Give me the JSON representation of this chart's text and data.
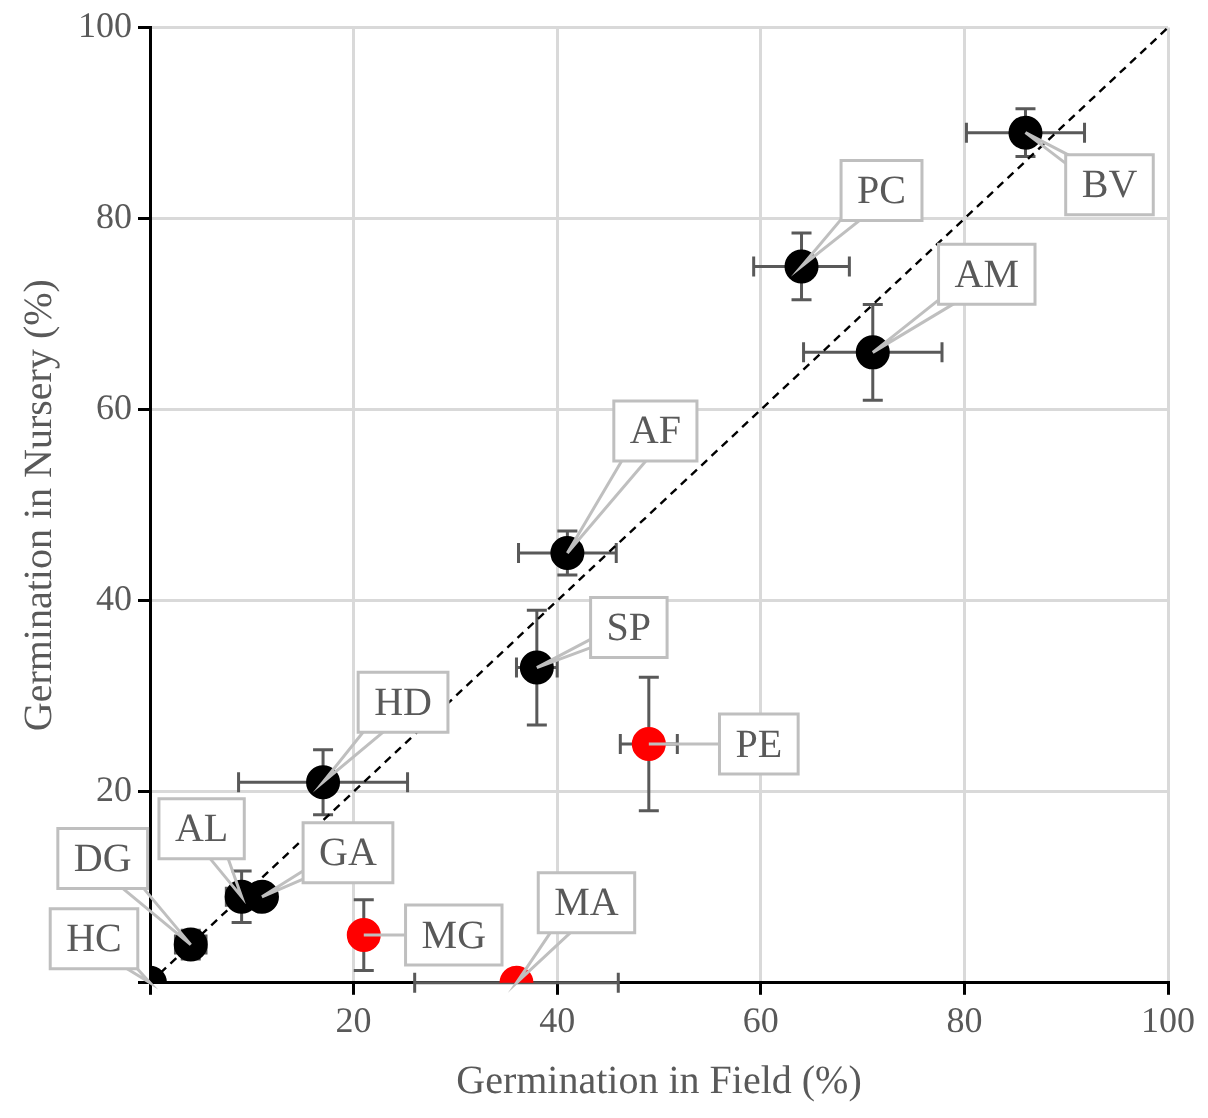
{
  "chart_data": {
    "type": "scatter",
    "xlabel": "Germination in Field (%)",
    "ylabel": "Germination in Nursery (%)",
    "xlim": [
      0,
      100
    ],
    "ylim": [
      0,
      100
    ],
    "xticks": [
      {
        "value": 0,
        "label": null
      },
      20,
      40,
      60,
      80,
      100
    ],
    "yticks": [
      {
        "value": 0,
        "label": null
      },
      20,
      40,
      60,
      80,
      100
    ],
    "grid": true,
    "legend": false,
    "marker": "circle",
    "series": [
      {
        "x": [
          64,
          86,
          71,
          41,
          38,
          49,
          17,
          4,
          9,
          11,
          0,
          36,
          21
        ],
        "values": [
          75,
          89,
          66,
          45,
          33,
          25,
          21,
          4,
          9,
          9,
          0,
          0,
          5
        ],
        "colors": [
          "#000000",
          "#000000",
          "#000000",
          "#000000",
          "#000000",
          "#ff0000",
          "#000000",
          "#000000",
          "#000000",
          "#000000",
          "#000000",
          "#ff0000",
          "#ff0000"
        ],
        "errors": [
          3.5,
          2.5,
          5,
          2.3,
          6,
          7,
          3.4,
          1.5,
          2.7,
          null,
          null,
          null,
          3.7
        ],
        "xerrors": [
          4.7,
          5.8,
          6.8,
          4.8,
          2,
          2.8,
          8.3,
          1.5,
          1.5,
          null,
          null,
          10,
          null
        ],
        "value_labels": [
          "PC",
          "BV",
          "AM",
          "AF",
          "SP",
          "PE",
          "HD",
          "DG",
          "AL",
          "GA",
          "HC",
          "MA",
          "MG"
        ]
      },
      {
        "type": "line",
        "x": [
          0,
          100
        ],
        "values": [
          0,
          100
        ],
        "color": "#000000",
        "line_style": "dashed",
        "marker": "none"
      }
    ]
  }
}
